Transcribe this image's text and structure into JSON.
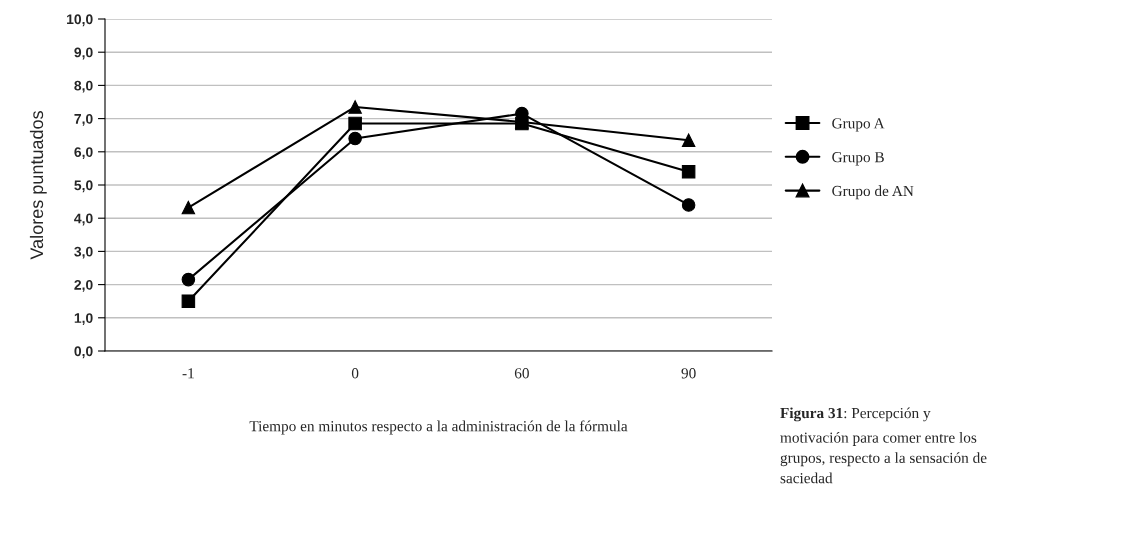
{
  "chart_data": {
    "type": "line",
    "xlabel": "Tiempo en minutos respecto a la administración de la fórmula",
    "ylabel": "Valores puntuados",
    "categories": [
      "-1",
      "0",
      "60",
      "90"
    ],
    "series": [
      {
        "name": "Grupo A",
        "color": "#000000",
        "marker": "square",
        "values": [
          1.5,
          6.85,
          6.85,
          5.4
        ]
      },
      {
        "name": "Grupo B",
        "color": "#000000",
        "marker": "circle",
        "values": [
          2.15,
          6.4,
          7.15,
          4.4
        ]
      },
      {
        "name": "Grupo de AN",
        "color": "#000000",
        "marker": "triangle",
        "values": [
          4.32,
          7.35,
          6.9,
          6.35
        ]
      }
    ],
    "ylim": [
      0,
      10
    ],
    "yticks": [
      {
        "value": 0,
        "label": "0,0"
      },
      {
        "value": 1,
        "label": "1,0"
      },
      {
        "value": 2,
        "label": "2,0"
      },
      {
        "value": 3,
        "label": "3,0"
      },
      {
        "value": 4,
        "label": "4,0"
      },
      {
        "value": 5,
        "label": "5,0"
      },
      {
        "value": 6,
        "label": "6,0"
      },
      {
        "value": 7,
        "label": "7,0"
      },
      {
        "value": 8,
        "label": "8,0"
      },
      {
        "value": 9,
        "label": "9,0"
      },
      {
        "value": 10,
        "label": "10,0"
      }
    ],
    "grid": "y",
    "legend": "right",
    "line_style": "solid",
    "annotations": [
      "Figura 31",
      ": Percepción y",
      "motivación para comer entre los\ngrupos, respecto a la sensación de\nsaciedad"
    ]
  }
}
